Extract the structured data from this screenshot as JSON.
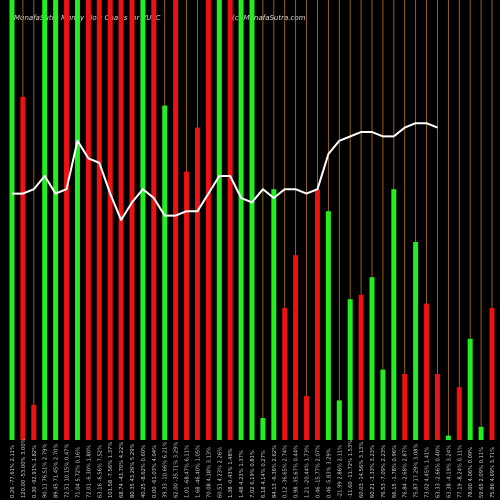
{
  "header": {
    "left": "MunafaSutra Money Flow Charts for VUFC",
    "right": "(c) MunafaSutra.com"
  },
  "colors": {
    "background": "#000000",
    "up": "#22ee22",
    "down": "#ee1111",
    "line": "#ffffff",
    "grid": "#b87a1a"
  },
  "chart_data": {
    "type": "bar",
    "title": "MunafaSutra Money Flow Charts for VUFC",
    "series": [
      {
        "name": "",
        "values": [
          100,
          78,
          8,
          100,
          100,
          100,
          100,
          100,
          100,
          100,
          100,
          100,
          100,
          100,
          76,
          100,
          61,
          71,
          100,
          100,
          100,
          100,
          100,
          5,
          57,
          30,
          42,
          10,
          57,
          52,
          9,
          32,
          33,
          37,
          16,
          57,
          15,
          45,
          31,
          15,
          1,
          12,
          23,
          3,
          30
        ],
        "colors": [
          "green",
          "red",
          "red",
          "green",
          "green",
          "red",
          "green",
          "red",
          "red",
          "red",
          "red",
          "red",
          "green",
          "red",
          "green",
          "red",
          "red",
          "red",
          "red",
          "green",
          "red",
          "green",
          "green",
          "green",
          "green",
          "red",
          "red",
          "red",
          "red",
          "green",
          "green",
          "green",
          "red",
          "green",
          "green",
          "green",
          "red",
          "green",
          "red",
          "red",
          "green",
          "red",
          "green",
          "green",
          "red"
        ]
      },
      {
        "name": "",
        "values": [
          56,
          56,
          57,
          60,
          56,
          57,
          68,
          64,
          63,
          56,
          50,
          54,
          57,
          55,
          51,
          51,
          52,
          52,
          56,
          60,
          60,
          55,
          54,
          57,
          55,
          57,
          57,
          56,
          57,
          65,
          68,
          69,
          70,
          70,
          69,
          69,
          71,
          72,
          72,
          71
        ]
      }
    ],
    "x_tick_labels": [
      "0.26 -77.61% 2.11%",
      "120.00 -53.00% 3.00%",
      "0.30 -92.91% 1.82%",
      "90.11 76.51% 2.79%",
      "89.45 71.45% 2.70%",
      "72.51 10.15% 0.47%",
      "71.04 5.72% 0.16%",
      "72.01 -6.30% 1.80%",
      "63.16 -6.56% 7.52%",
      "101.58 -7.56% 1.37%",
      "68.74 -43.70% 4.22%",
      "80.35 43.26% 5.29%",
      "40.25 -8.62% 0.60%",
      "0.00 -61.03% 4.04%",
      "39.33 -10.66% 6.21%",
      "62.00 -35.71% 3.29%",
      "1.01 -68.47% 6.11%",
      "1.68 -46.40% 1.05%",
      "70.08 4.18% 3.13%",
      "60.51 4.23% 2.26%",
      "1.38 -0.43% 1.48%",
      "1.48 4.23% 1.37%",
      "7.02 6.19% 0.81%",
      "6.18 4.14% 0.27%",
      "84.13 -6.36% 2.62%",
      "0.12 -36.65% 2.74%",
      "0.98 -35.67% 0.44%",
      "1.21 -20.44% 1.73%",
      "0.46 -15.77% 2.07%",
      "0.46 -5.83% 3.29%",
      "-21.99 2.86% 2.11%",
      "-11.60 -11.72% 1.53%",
      "60.03 -14.56% 3.13%",
      "60.21 -3.33% 3.23%",
      "76.53 -7.09% 2.23%",
      "66.15 -1.78% 0.96%",
      "76.84 -2.68% 2.87%",
      "75.87 17.29% 3.08%",
      "73.02 4.45% 1.41%",
      "63.33 -2.66% 0.40%",
      "63.38 -4.19% 3.24%",
      "77.19 -8.24% 0.11%",
      "78.00 4.06% 0.09%",
      "59.65 2.09% 0.11%",
      "75.86 4.69% 3.71%"
    ]
  }
}
